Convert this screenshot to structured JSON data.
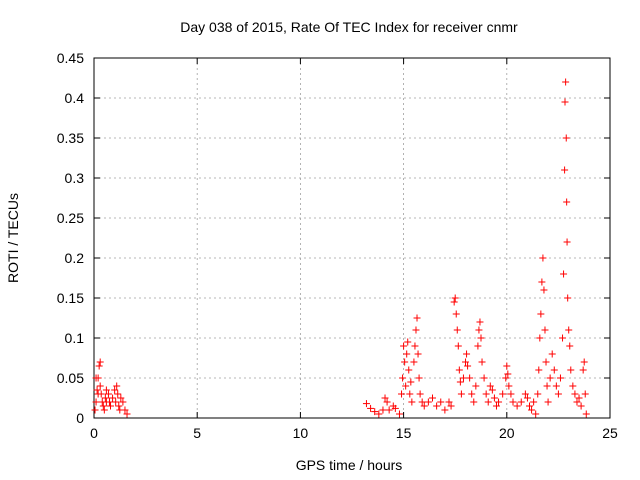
{
  "chart_data": {
    "type": "scatter",
    "title": "Day 038 of 2015, Rate Of TEC Index for receiver cnmr",
    "xlabel": "GPS time / hours",
    "ylabel": "ROTI / TECUs",
    "xlim": [
      0,
      25
    ],
    "ylim": [
      0,
      0.45
    ],
    "xticks": [
      0,
      5,
      10,
      15,
      20,
      25
    ],
    "yticks": [
      0,
      0.05,
      0.1,
      0.15,
      0.2,
      0.25,
      0.3,
      0.35,
      0.4,
      0.45
    ],
    "grid": true,
    "marker": "+",
    "series_color": "#ff0000",
    "points": [
      [
        0.05,
        0.01
      ],
      [
        0.1,
        0.02
      ],
      [
        0.15,
        0.035
      ],
      [
        0.2,
        0.05
      ],
      [
        0.25,
        0.065
      ],
      [
        0.3,
        0.07
      ],
      [
        0.3,
        0.04
      ],
      [
        0.35,
        0.03
      ],
      [
        0.4,
        0.02
      ],
      [
        0.45,
        0.015
      ],
      [
        0.5,
        0.01
      ],
      [
        0.55,
        0.025
      ],
      [
        0.6,
        0.02
      ],
      [
        0.7,
        0.03
      ],
      [
        0.8,
        0.015
      ],
      [
        0.9,
        0.025
      ],
      [
        1.0,
        0.035
      ],
      [
        1.05,
        0.02
      ],
      [
        1.1,
        0.04
      ],
      [
        1.15,
        0.03
      ],
      [
        1.2,
        0.015
      ],
      [
        1.3,
        0.025
      ],
      [
        1.4,
        0.02
      ],
      [
        1.5,
        0.01
      ],
      [
        1.6,
        0.005
      ],
      [
        0.1,
        0.05
      ],
      [
        0.2,
        0.03
      ],
      [
        0.6,
        0.035
      ],
      [
        0.75,
        0.02
      ],
      [
        1.25,
        0.01
      ],
      [
        13.2,
        0.018
      ],
      [
        13.4,
        0.012
      ],
      [
        13.6,
        0.008
      ],
      [
        13.8,
        0.005
      ],
      [
        14.0,
        0.01
      ],
      [
        14.1,
        0.025
      ],
      [
        14.2,
        0.02
      ],
      [
        14.3,
        0.01
      ],
      [
        14.5,
        0.015
      ],
      [
        14.6,
        0.012
      ],
      [
        14.8,
        0.005
      ],
      [
        14.9,
        0.03
      ],
      [
        14.95,
        0.05
      ],
      [
        15.0,
        0.09
      ],
      [
        15.05,
        0.07
      ],
      [
        15.1,
        0.04
      ],
      [
        15.15,
        0.08
      ],
      [
        15.2,
        0.095
      ],
      [
        15.25,
        0.06
      ],
      [
        15.3,
        0.03
      ],
      [
        15.35,
        0.045
      ],
      [
        15.4,
        0.02
      ],
      [
        15.5,
        0.07
      ],
      [
        15.55,
        0.09
      ],
      [
        15.6,
        0.11
      ],
      [
        15.65,
        0.125
      ],
      [
        15.7,
        0.08
      ],
      [
        15.75,
        0.05
      ],
      [
        15.8,
        0.03
      ],
      [
        15.9,
        0.02
      ],
      [
        16.0,
        0.015
      ],
      [
        16.2,
        0.02
      ],
      [
        16.4,
        0.025
      ],
      [
        16.6,
        0.015
      ],
      [
        16.8,
        0.02
      ],
      [
        17.0,
        0.01
      ],
      [
        17.2,
        0.02
      ],
      [
        17.3,
        0.015
      ],
      [
        17.45,
        0.145
      ],
      [
        17.5,
        0.15
      ],
      [
        17.55,
        0.13
      ],
      [
        17.6,
        0.11
      ],
      [
        17.65,
        0.09
      ],
      [
        17.7,
        0.06
      ],
      [
        17.75,
        0.045
      ],
      [
        17.8,
        0.03
      ],
      [
        17.9,
        0.05
      ],
      [
        18.0,
        0.07
      ],
      [
        18.05,
        0.08
      ],
      [
        18.1,
        0.065
      ],
      [
        18.2,
        0.05
      ],
      [
        18.3,
        0.03
      ],
      [
        18.4,
        0.02
      ],
      [
        18.5,
        0.04
      ],
      [
        18.6,
        0.09
      ],
      [
        18.65,
        0.11
      ],
      [
        18.7,
        0.12
      ],
      [
        18.75,
        0.1
      ],
      [
        18.8,
        0.07
      ],
      [
        18.9,
        0.05
      ],
      [
        19.0,
        0.03
      ],
      [
        19.1,
        0.02
      ],
      [
        19.2,
        0.04
      ],
      [
        19.3,
        0.035
      ],
      [
        19.4,
        0.025
      ],
      [
        19.5,
        0.015
      ],
      [
        19.6,
        0.02
      ],
      [
        19.8,
        0.03
      ],
      [
        19.95,
        0.05
      ],
      [
        20.0,
        0.065
      ],
      [
        20.05,
        0.055
      ],
      [
        20.1,
        0.04
      ],
      [
        20.2,
        0.03
      ],
      [
        20.3,
        0.02
      ],
      [
        20.5,
        0.015
      ],
      [
        20.7,
        0.02
      ],
      [
        20.9,
        0.03
      ],
      [
        21.0,
        0.025
      ],
      [
        21.1,
        0.015
      ],
      [
        21.2,
        0.01
      ],
      [
        21.3,
        0.02
      ],
      [
        21.4,
        0.005
      ],
      [
        21.5,
        0.03
      ],
      [
        21.55,
        0.06
      ],
      [
        21.6,
        0.1
      ],
      [
        21.65,
        0.13
      ],
      [
        21.7,
        0.17
      ],
      [
        21.75,
        0.2
      ],
      [
        21.8,
        0.16
      ],
      [
        21.85,
        0.11
      ],
      [
        21.9,
        0.07
      ],
      [
        21.95,
        0.04
      ],
      [
        22.0,
        0.02
      ],
      [
        22.1,
        0.05
      ],
      [
        22.2,
        0.08
      ],
      [
        22.3,
        0.06
      ],
      [
        22.4,
        0.04
      ],
      [
        22.5,
        0.03
      ],
      [
        22.6,
        0.05
      ],
      [
        22.7,
        0.1
      ],
      [
        22.75,
        0.18
      ],
      [
        22.8,
        0.31
      ],
      [
        22.82,
        0.395
      ],
      [
        22.85,
        0.42
      ],
      [
        22.88,
        0.35
      ],
      [
        22.9,
        0.27
      ],
      [
        22.92,
        0.22
      ],
      [
        22.95,
        0.15
      ],
      [
        23.0,
        0.11
      ],
      [
        23.05,
        0.09
      ],
      [
        23.1,
        0.06
      ],
      [
        23.2,
        0.04
      ],
      [
        23.3,
        0.03
      ],
      [
        23.4,
        0.02
      ],
      [
        23.5,
        0.025
      ],
      [
        23.6,
        0.015
      ],
      [
        23.7,
        0.06
      ],
      [
        23.75,
        0.07
      ],
      [
        23.8,
        0.03
      ],
      [
        23.85,
        0.005
      ]
    ]
  }
}
